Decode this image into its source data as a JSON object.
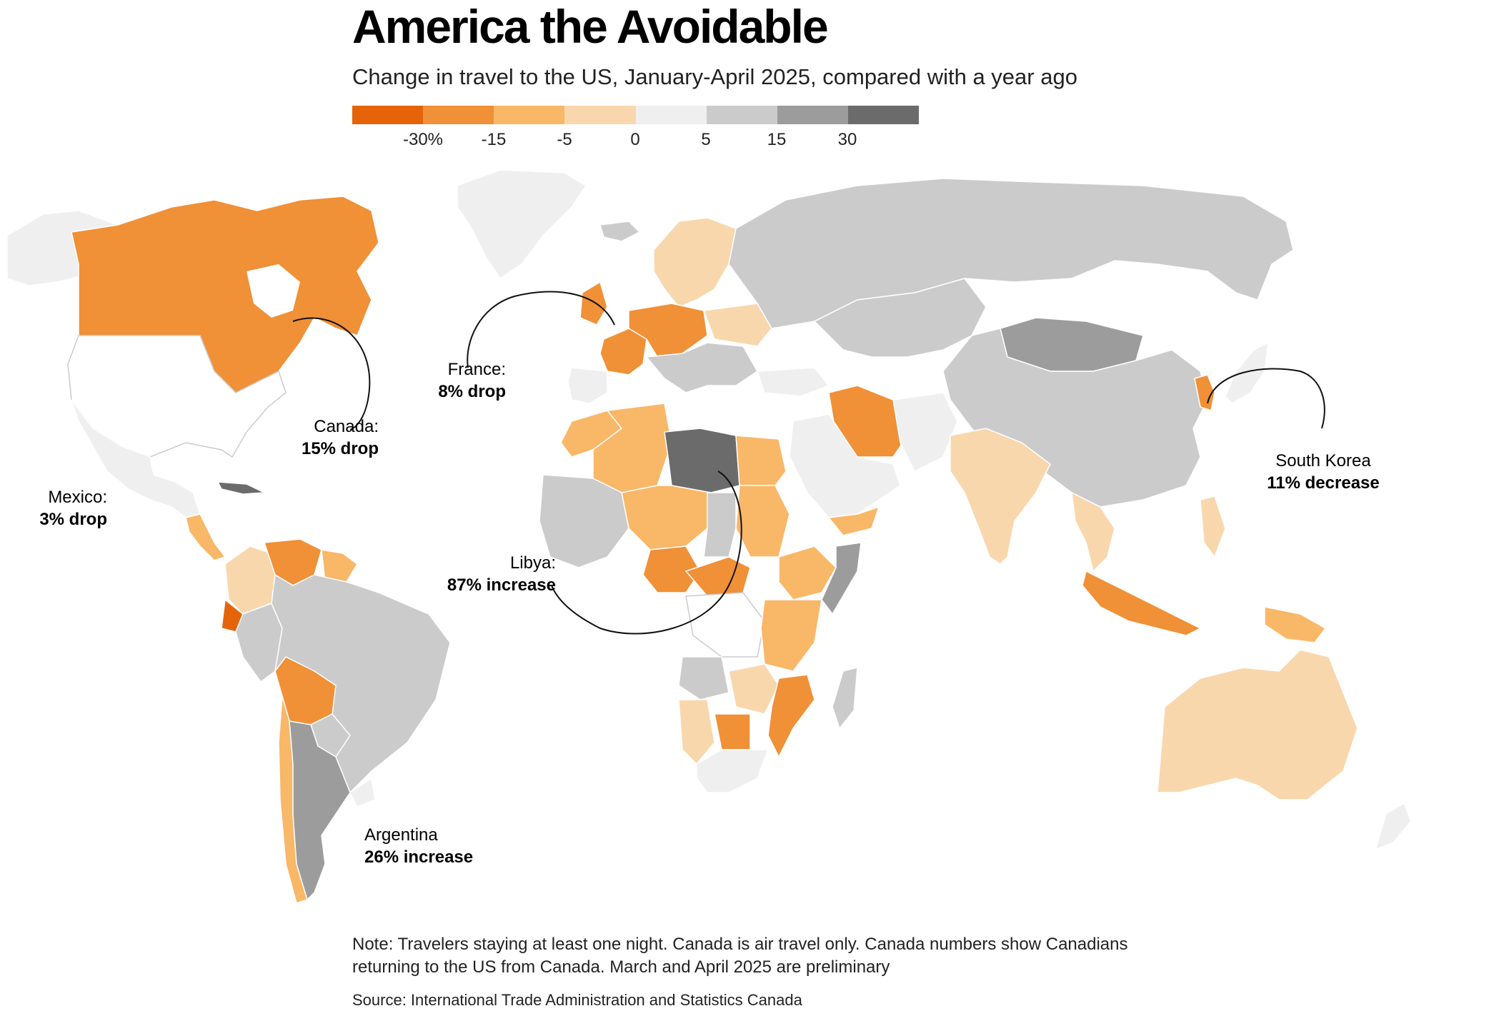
{
  "title": "America the Avoidable",
  "subtitle": "Change in travel to the US, January-April 2025, compared with a year ago",
  "legend": {
    "colors": [
      "#e5640a",
      "#f09037",
      "#f9b768",
      "#f9d7ad",
      "#efefef",
      "#cbcbcb",
      "#9c9c9c",
      "#6b6b6b"
    ],
    "tick_labels": [
      "-30%",
      "-15",
      "-5",
      "0",
      "5",
      "15",
      "30"
    ]
  },
  "colors": {
    "land_default": "#cbcbcb",
    "border": "#ffffff",
    "callout_line": "#111111"
  },
  "callouts": {
    "canada": {
      "name": "Canada:",
      "value": "15% drop"
    },
    "mexico": {
      "name": "Mexico:",
      "value": "3% drop"
    },
    "france": {
      "name": "France:",
      "value": "8% drop"
    },
    "libya": {
      "name": "Libya:",
      "value": "87% increase"
    },
    "south_korea": {
      "name": "South Korea",
      "value": "11% decrease"
    },
    "argentina": {
      "name": "Argentina",
      "value": "26% increase"
    }
  },
  "note": "Note: Travelers staying at least one night. Canada is air travel only. Canada numbers show Canadians returning to the US from Canada. March and April 2025 are preliminary",
  "source": "Source: International Trade Administration and Statistics Canada"
}
